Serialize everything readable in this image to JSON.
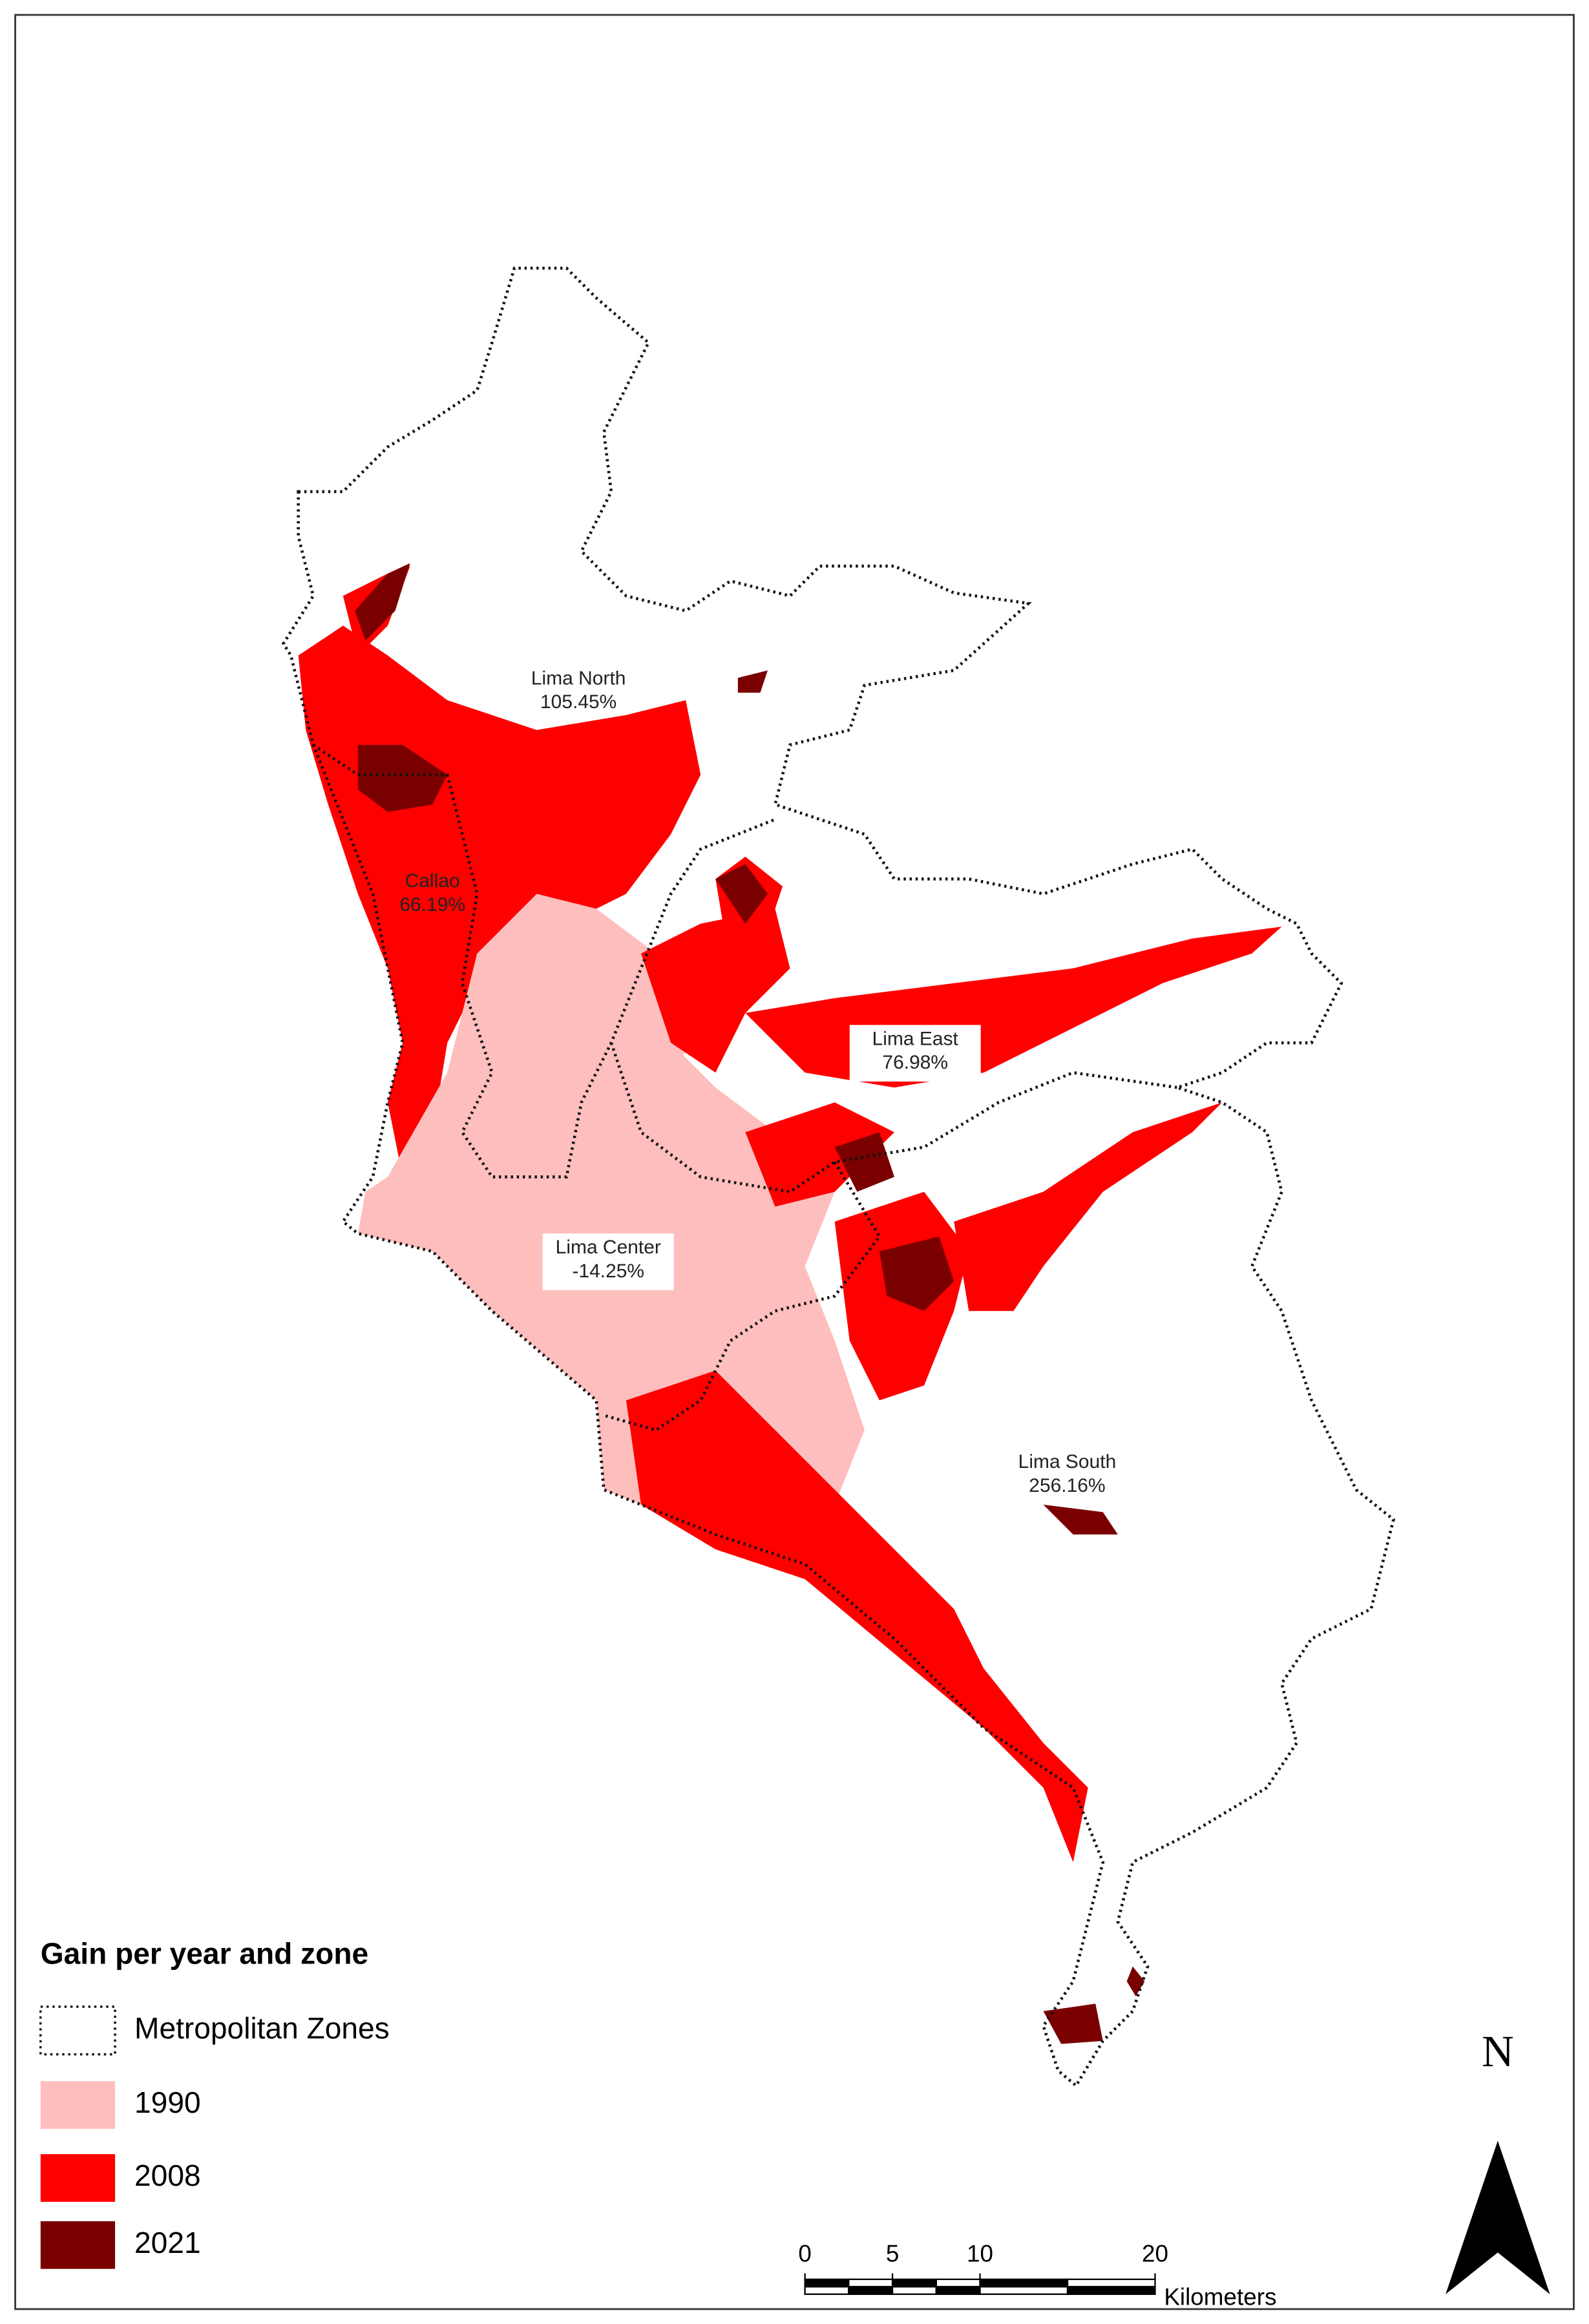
{
  "legend": {
    "title": "Gain per year and zone",
    "items": [
      {
        "label": "Metropolitan Zones",
        "color": "#ffffff"
      },
      {
        "label": "1990",
        "color": "#ffbebe"
      },
      {
        "label": "2008",
        "color": "#ff0000"
      },
      {
        "label": "2021",
        "color": "#7a0000"
      }
    ]
  },
  "zones": [
    {
      "name": "Lima North",
      "value_label": "105.45%"
    },
    {
      "name": "Callao",
      "value_label": "66.19%"
    },
    {
      "name": "Lima East",
      "value_label": "76.98%"
    },
    {
      "name": "Lima Center",
      "value_label": "-14.25%"
    },
    {
      "name": "Lima South",
      "value_label": "256.16%"
    }
  ],
  "scale_bar": {
    "ticks": [
      0,
      5,
      10,
      20
    ],
    "unit": "Kilometers"
  },
  "north": "N"
}
